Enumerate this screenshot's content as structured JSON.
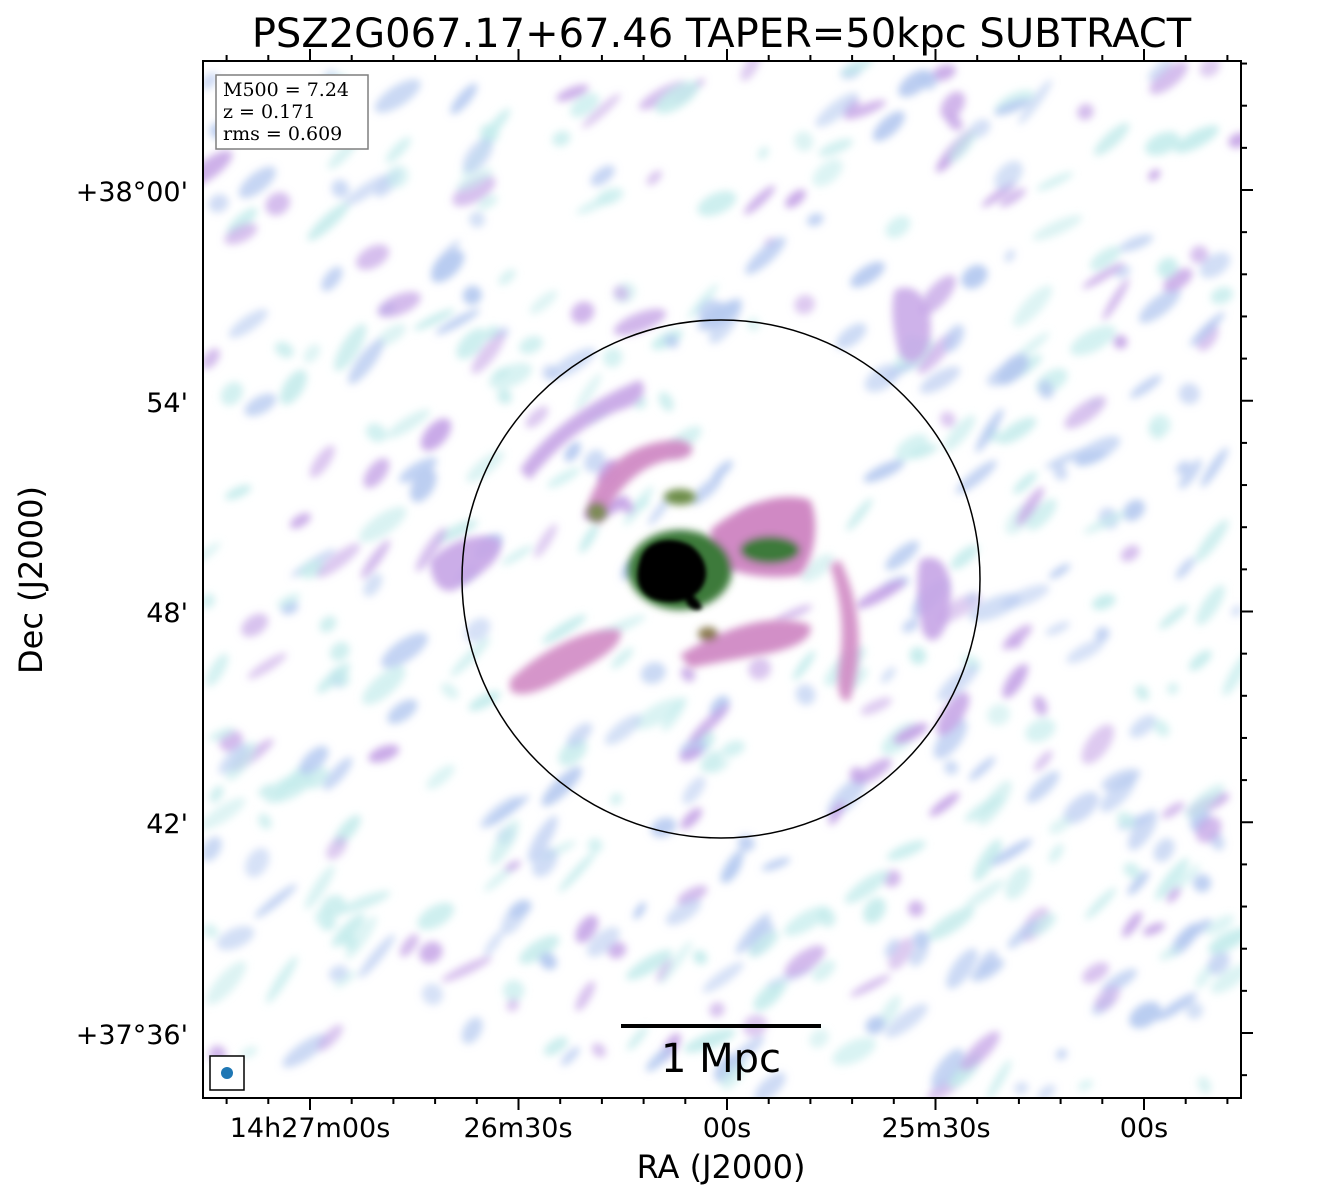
{
  "title": "PSZ2G067.17+67.46 TAPER=50kpc SUBTRACT",
  "info_box": {
    "mass": "M500 = 7.24",
    "redshift": "z = 0.171",
    "rms": "rms = 0.609"
  },
  "axes": {
    "xlabel": "RA (J2000)",
    "ylabel": "Dec (J2000)",
    "x_ticks": [
      "14h27m00s",
      "26m30s",
      "00s",
      "25m30s",
      "00s"
    ],
    "y_ticks": [
      "+38°00'",
      "54'",
      "48'",
      "42'",
      "+37°36'"
    ]
  },
  "scale_bar": {
    "label": "1 Mpc"
  },
  "colors": {
    "noise_light": "#c5ecec",
    "noise_blue": "#b5c9f0",
    "noise_violet": "#c5a4e6",
    "emission_pink": "#d089c4",
    "emission_green": "#3c7a3a",
    "core": "#000000",
    "beam": "#1f77b4"
  }
}
